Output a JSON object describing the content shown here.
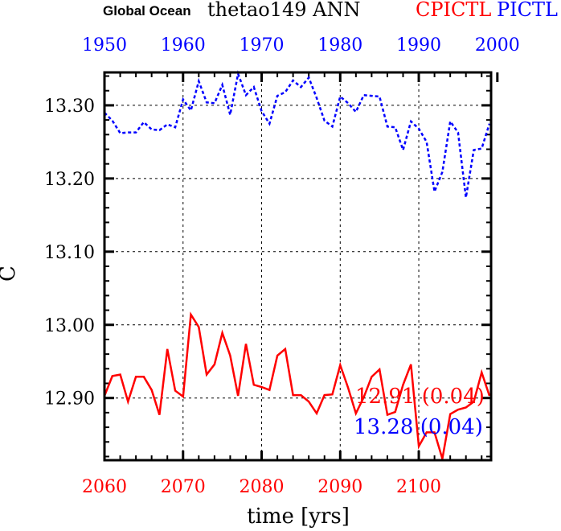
{
  "chart_data": {
    "type": "line",
    "title": {
      "region": "Global Ocean",
      "variable": "thetao149 ANN",
      "series1_label": "CPICTL",
      "series2_label": "PICTL"
    },
    "ylabel": "C",
    "xlabel": "time [yrs]",
    "ylim": [
      12.815,
      13.345
    ],
    "yticks": [
      "12.90",
      "13.00",
      "13.10",
      "13.20",
      "13.30"
    ],
    "ytick_values": [
      12.9,
      13.0,
      13.1,
      13.2,
      13.3
    ],
    "bottom_axis": {
      "range": [
        2060,
        2109.2
      ],
      "ticks": [
        "2060",
        "2070",
        "2080",
        "2090",
        "2100"
      ],
      "color": "#ff0000"
    },
    "top_axis": {
      "range": [
        1950,
        1999.2
      ],
      "ticks": [
        "1950",
        "1960",
        "1970",
        "1980",
        "1990",
        "2000"
      ],
      "color": "#0000ff"
    },
    "grid": true,
    "series": [
      {
        "name": "CPICTL",
        "color": "#ff0000",
        "style": "solid",
        "axis": "bottom",
        "x_start": 2060,
        "values": [
          12.903,
          12.93,
          12.932,
          12.895,
          12.929,
          12.929,
          12.911,
          12.877,
          12.967,
          12.91,
          12.902,
          13.014,
          12.997,
          12.932,
          12.946,
          12.989,
          12.958,
          12.903,
          12.974,
          12.918,
          12.915,
          12.911,
          12.958,
          12.967,
          12.904,
          12.904,
          12.895,
          12.879,
          12.904,
          12.905,
          12.945,
          12.914,
          12.879,
          12.901,
          12.929,
          12.939,
          12.877,
          12.881,
          12.918,
          12.946,
          12.834,
          12.853,
          12.853,
          12.817,
          12.878,
          12.884,
          12.887,
          12.895,
          12.935,
          12.903
        ],
        "annotation": "12.91 (0.04)"
      },
      {
        "name": "PICTL",
        "color": "#0000ff",
        "style": "dashed",
        "axis": "top",
        "x_start": 1950,
        "values": [
          13.29,
          13.279,
          13.262,
          13.263,
          13.263,
          13.277,
          13.267,
          13.266,
          13.274,
          13.27,
          13.308,
          13.293,
          13.333,
          13.304,
          13.303,
          13.328,
          13.287,
          13.343,
          13.314,
          13.325,
          13.292,
          13.275,
          13.313,
          13.318,
          13.334,
          13.325,
          13.338,
          13.31,
          13.279,
          13.271,
          13.312,
          13.303,
          13.291,
          13.314,
          13.313,
          13.312,
          13.271,
          13.27,
          13.239,
          13.278,
          13.268,
          13.25,
          13.182,
          13.209,
          13.278,
          13.263,
          13.174,
          13.239,
          13.241,
          13.275
        ],
        "annotation": "13.28 (0.04)"
      }
    ]
  }
}
